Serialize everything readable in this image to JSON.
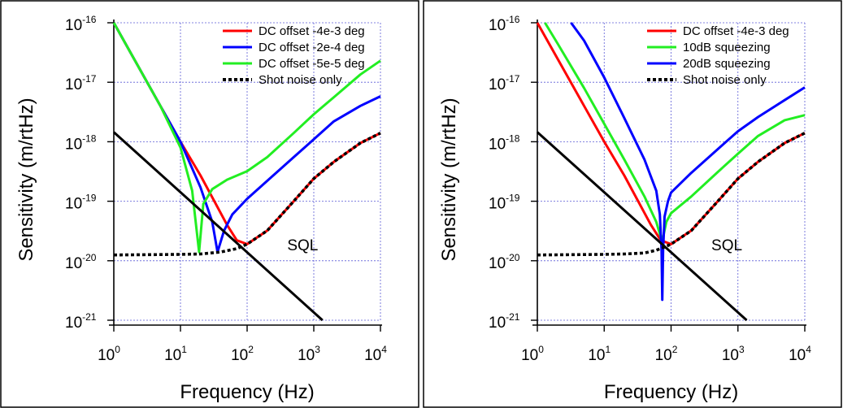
{
  "chart_data": [
    {
      "type": "line",
      "x_scale": "log",
      "y_scale": "log",
      "xlim": [
        1,
        10000
      ],
      "ylim": [
        1e-21,
        1e-16
      ],
      "grid": true,
      "legend_position": "top-right",
      "xlabel": "Frequency (Hz)",
      "ylabel": "Sensitivity (m/rtHz)",
      "x_ticks": [
        {
          "base": "10",
          "exp": "0"
        },
        {
          "base": "10",
          "exp": "1"
        },
        {
          "base": "10",
          "exp": "2"
        },
        {
          "base": "10",
          "exp": "3"
        },
        {
          "base": "10",
          "exp": "4"
        }
      ],
      "y_ticks": [
        {
          "base": "10",
          "exp": "-21"
        },
        {
          "base": "10",
          "exp": "-20"
        },
        {
          "base": "10",
          "exp": "-19"
        },
        {
          "base": "10",
          "exp": "-18"
        },
        {
          "base": "10",
          "exp": "-17"
        },
        {
          "base": "10",
          "exp": "-16"
        }
      ],
      "annotations": [
        {
          "text": "SQL",
          "x": 400,
          "y": 1.5e-20
        }
      ],
      "series": [
        {
          "name": "DC offset -4e-3 deg",
          "color": "#ff0000",
          "style": "solid",
          "x": [
            1,
            2,
            5,
            10,
            20,
            50,
            70,
            100,
            200,
            500,
            1000,
            2000,
            5000,
            10000
          ],
          "y": [
            1e-16,
            2.5e-17,
            4e-18,
            1e-18,
            2.7e-19,
            4e-20,
            2.2e-20,
            1.9e-20,
            3.2e-20,
            1e-19,
            2.4e-19,
            4.6e-19,
            9.5e-19,
            1.4e-18
          ]
        },
        {
          "name": "DC offset -2e-4 deg",
          "color": "#0000ff",
          "style": "solid",
          "x": [
            1,
            2,
            5,
            10,
            20,
            30,
            36,
            45,
            60,
            100,
            200,
            500,
            1000,
            2000,
            5000,
            10000
          ],
          "y": [
            1e-16,
            2.5e-17,
            4e-18,
            1e-18,
            1.7e-19,
            4.5e-20,
            1.4e-20,
            3.2e-20,
            6e-20,
            1.1e-19,
            2.2e-19,
            5.5e-19,
            1.1e-18,
            2.2e-18,
            4e-18,
            5.8e-18
          ]
        },
        {
          "name": "DC offset -5e-5 deg",
          "color": "#22ee22",
          "style": "solid",
          "x": [
            1,
            2,
            5,
            10,
            15,
            19,
            22,
            30,
            50,
            100,
            200,
            500,
            1000,
            2000,
            5000,
            10000
          ],
          "y": [
            1e-16,
            2.5e-17,
            4e-18,
            8e-19,
            1.5e-19,
            1.4e-20,
            9e-20,
            1.6e-19,
            2.3e-19,
            3.2e-19,
            5.5e-19,
            1.4e-18,
            2.9e-18,
            5.6e-18,
            1.35e-17,
            2.3e-17
          ]
        },
        {
          "name": "Shot noise only",
          "color": "#000000",
          "style": "dotted",
          "x": [
            1,
            2,
            5,
            10,
            20,
            40,
            70,
            100,
            200,
            500,
            1000,
            2000,
            5000,
            10000
          ],
          "y": [
            1.25e-20,
            1.26e-20,
            1.27e-20,
            1.28e-20,
            1.3e-20,
            1.4e-20,
            1.6e-20,
            1.9e-20,
            3.2e-20,
            1e-19,
            2.4e-19,
            4.6e-19,
            9.5e-19,
            1.4e-18
          ]
        },
        {
          "name": "",
          "color": "#000000",
          "style": "solid",
          "x": [
            1,
            1350
          ],
          "y": [
            1.45e-18,
            1e-21
          ]
        }
      ]
    },
    {
      "type": "line",
      "x_scale": "log",
      "y_scale": "log",
      "xlim": [
        1,
        10000
      ],
      "ylim": [
        1e-21,
        1e-16
      ],
      "grid": true,
      "legend_position": "top-right",
      "xlabel": "Frequency (Hz)",
      "ylabel": "Sensitivity (m/rtHz)",
      "x_ticks": [
        {
          "base": "10",
          "exp": "0"
        },
        {
          "base": "10",
          "exp": "1"
        },
        {
          "base": "10",
          "exp": "2"
        },
        {
          "base": "10",
          "exp": "3"
        },
        {
          "base": "10",
          "exp": "4"
        }
      ],
      "y_ticks": [
        {
          "base": "10",
          "exp": "-21"
        },
        {
          "base": "10",
          "exp": "-20"
        },
        {
          "base": "10",
          "exp": "-19"
        },
        {
          "base": "10",
          "exp": "-18"
        },
        {
          "base": "10",
          "exp": "-17"
        },
        {
          "base": "10",
          "exp": "-16"
        }
      ],
      "annotations": [
        {
          "text": "SQL",
          "x": 400,
          "y": 1.5e-20
        }
      ],
      "series": [
        {
          "name": "DC offset -4e-3 deg",
          "color": "#ff0000",
          "style": "solid",
          "x": [
            1,
            2,
            5,
            10,
            20,
            50,
            70,
            100,
            200,
            500,
            1000,
            2000,
            5000,
            10000
          ],
          "y": [
            1e-16,
            2.5e-17,
            4e-18,
            1e-18,
            2.7e-19,
            4e-20,
            2.2e-20,
            1.9e-20,
            3.2e-20,
            1e-19,
            2.4e-19,
            4.6e-19,
            9.5e-19,
            1.4e-18
          ]
        },
        {
          "name": "10dB squeezing",
          "color": "#22ee22",
          "style": "solid",
          "x": [
            1.3,
            2,
            5,
            10,
            20,
            40,
            60,
            70,
            73,
            76,
            85,
            100,
            200,
            500,
            1000,
            2000,
            5000,
            10000
          ],
          "y": [
            1e-16,
            4.5e-17,
            8e-18,
            2e-18,
            5e-19,
            1.2e-19,
            4.5e-20,
            2.5e-20,
            1.8e-20,
            2.5e-20,
            4.5e-20,
            6.3e-20,
            1.2e-19,
            3.1e-19,
            6.3e-19,
            1.25e-18,
            2.3e-18,
            2.8e-18
          ]
        },
        {
          "name": "20dB squeezing",
          "color": "#0000ff",
          "style": "solid",
          "x": [
            3.2,
            5,
            10,
            20,
            40,
            60,
            68,
            72,
            74,
            76,
            80,
            90,
            100,
            200,
            500,
            1000,
            2000,
            5000,
            10000
          ],
          "y": [
            1e-16,
            5e-17,
            1.2e-17,
            2.5e-18,
            5e-19,
            1.5e-19,
            6e-20,
            1.5e-20,
            2.2e-21,
            1.5e-20,
            5.5e-20,
            1e-19,
            1.4e-19,
            3e-19,
            7.5e-19,
            1.5e-18,
            2.6e-18,
            5e-18,
            8.2e-18
          ]
        },
        {
          "name": "Shot noise only",
          "color": "#000000",
          "style": "dotted",
          "x": [
            1,
            2,
            5,
            10,
            20,
            40,
            60,
            80,
            100,
            200,
            500,
            1000,
            2000,
            5000,
            10000
          ],
          "y": [
            1.25e-20,
            1.26e-20,
            1.27e-20,
            1.28e-20,
            1.3e-20,
            1.35e-20,
            1.5e-20,
            1.7e-20,
            1.9e-20,
            3.2e-20,
            1e-19,
            2.4e-19,
            4.6e-19,
            9.5e-19,
            1.4e-18
          ]
        },
        {
          "name": "",
          "color": "#000000",
          "style": "solid",
          "x": [
            1,
            1350
          ],
          "y": [
            1.45e-18,
            1e-21
          ]
        }
      ]
    }
  ]
}
